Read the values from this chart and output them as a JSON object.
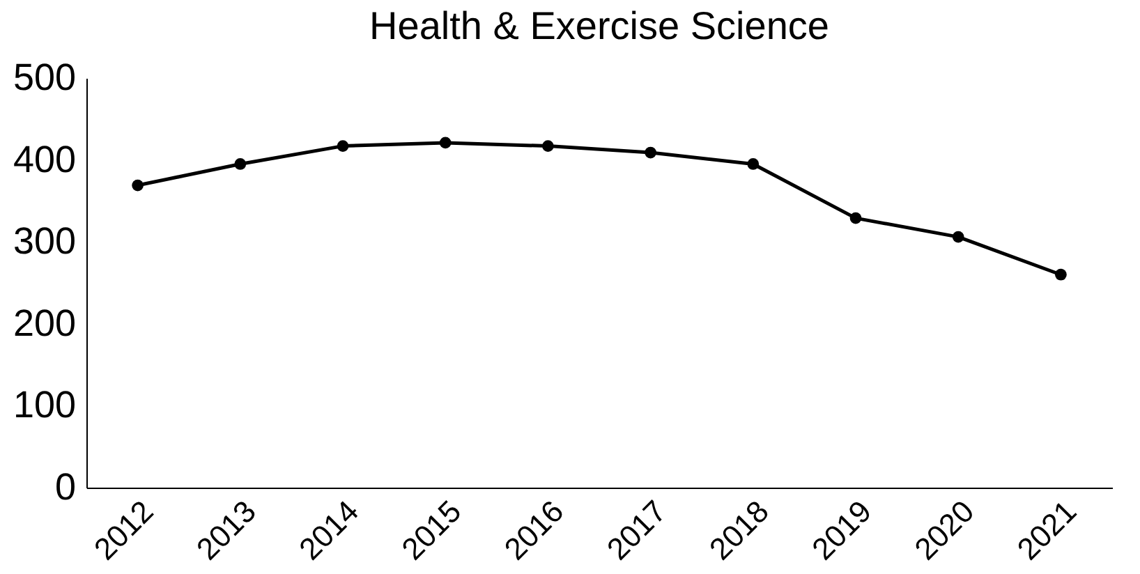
{
  "chart_data": {
    "type": "line",
    "title": "Health & Exercise Science",
    "categories": [
      "2012",
      "2013",
      "2014",
      "2015",
      "2016",
      "2017",
      "2018",
      "2019",
      "2020",
      "2021"
    ],
    "series": [
      {
        "color": "#000000",
        "values": [
          369,
          395,
          417,
          421,
          417,
          409,
          395,
          329,
          306,
          260
        ]
      }
    ],
    "ylim": [
      0,
      500
    ],
    "yticks": [
      0,
      100,
      200,
      300,
      400,
      500
    ],
    "grid": false,
    "legend": false,
    "marker": "circle",
    "line_style": "solid"
  }
}
